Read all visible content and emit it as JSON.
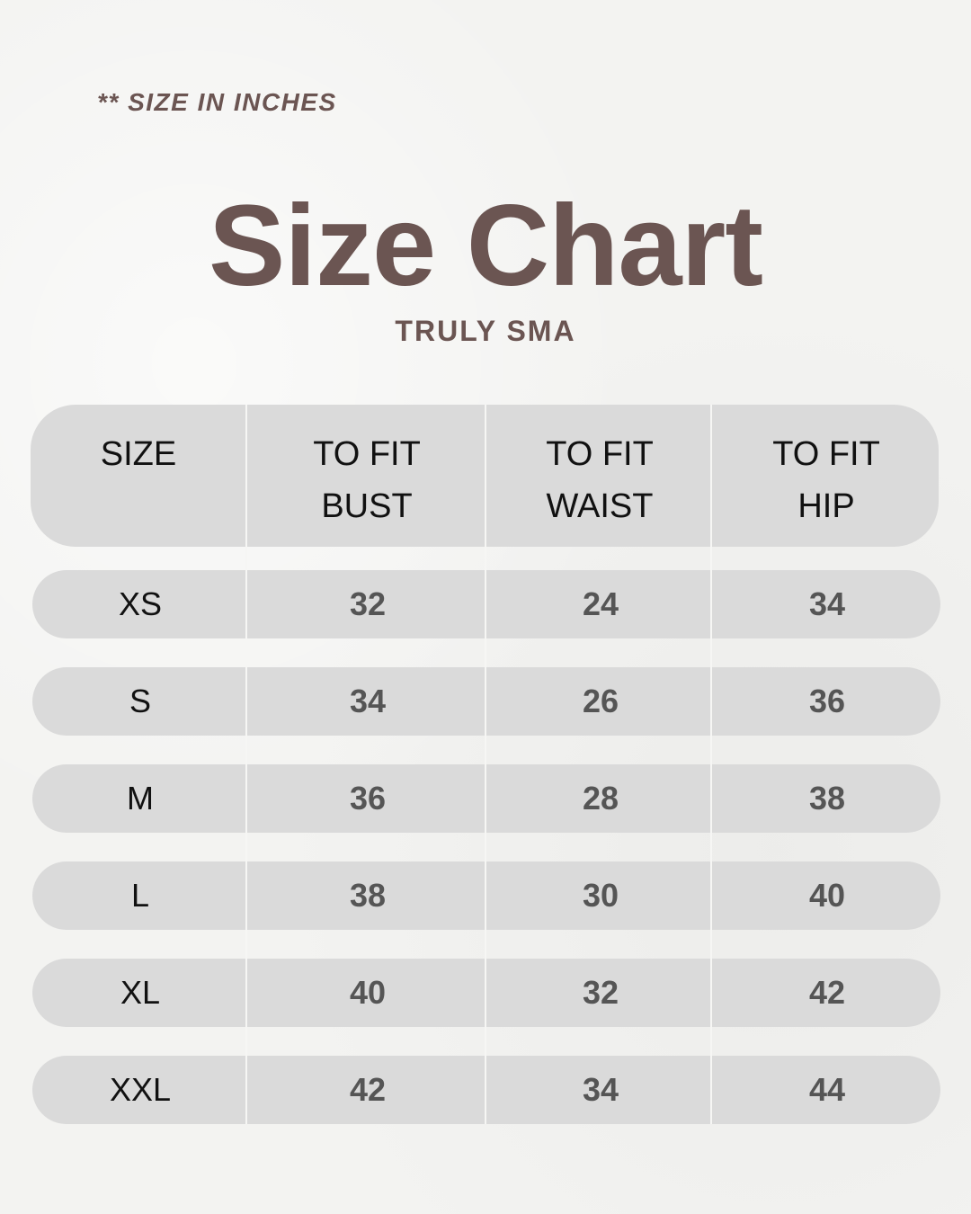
{
  "note": "** SIZE IN INCHES",
  "title": "Size Chart",
  "subtitle": "TRULY SMA",
  "colors": {
    "brand": "#6b5552",
    "row_bg": "#dadada",
    "value_text": "#555555"
  },
  "chart_data": {
    "type": "table",
    "columns": [
      "SIZE",
      "TO FIT BUST",
      "TO FIT WAIST",
      "TO FIT HIP"
    ],
    "header_lines": [
      [
        "SIZE",
        ""
      ],
      [
        "TO FIT",
        "BUST"
      ],
      [
        "TO FIT",
        "WAIST"
      ],
      [
        "TO FIT",
        "HIP"
      ]
    ],
    "rows": [
      [
        "XS",
        "32",
        "24",
        "34"
      ],
      [
        "S",
        "34",
        "26",
        "36"
      ],
      [
        "M",
        "36",
        "28",
        "38"
      ],
      [
        "L",
        "38",
        "30",
        "40"
      ],
      [
        "XL",
        "40",
        "32",
        "42"
      ],
      [
        "XXL",
        "42",
        "34",
        "44"
      ]
    ]
  }
}
